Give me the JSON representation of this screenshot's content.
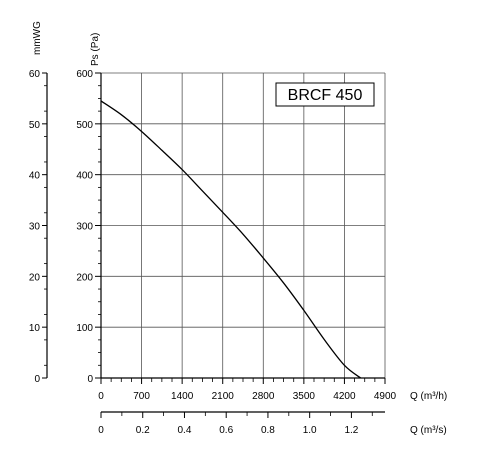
{
  "chart_data": {
    "type": "line",
    "title": "BRCF 450",
    "axes": {
      "pressure_pa": {
        "label": "Ps (Pa)",
        "range": [
          0,
          600
        ],
        "ticks": [
          "0",
          "100",
          "200",
          "300",
          "400",
          "500",
          "600"
        ]
      },
      "pressure_mmwg": {
        "label": "mmWG",
        "range": [
          0,
          60
        ],
        "ticks": [
          "0",
          "10",
          "20",
          "30",
          "40",
          "50",
          "60"
        ]
      },
      "flow_m3h": {
        "label": "Q (m³/h)",
        "range": [
          0,
          4900
        ],
        "ticks": [
          "0",
          "700",
          "1400",
          "2100",
          "2800",
          "3500",
          "4200",
          "4900"
        ]
      },
      "flow_m3s": {
        "label": "Q (m³/s)",
        "range": [
          0,
          1.361
        ],
        "ticks": [
          "0",
          "0.2",
          "0.4",
          "0.6",
          "0.8",
          "1.0",
          "1.2"
        ]
      }
    },
    "grid": true,
    "series": [
      {
        "x": [
          0,
          350,
          700,
          1050,
          1400,
          1750,
          2100,
          2450,
          2800,
          3150,
          3500,
          3850,
          4200,
          4480
        ],
        "y": [
          545,
          518,
          485,
          448,
          410,
          368,
          326,
          283,
          236,
          187,
          133,
          76,
          25,
          0
        ]
      }
    ]
  }
}
